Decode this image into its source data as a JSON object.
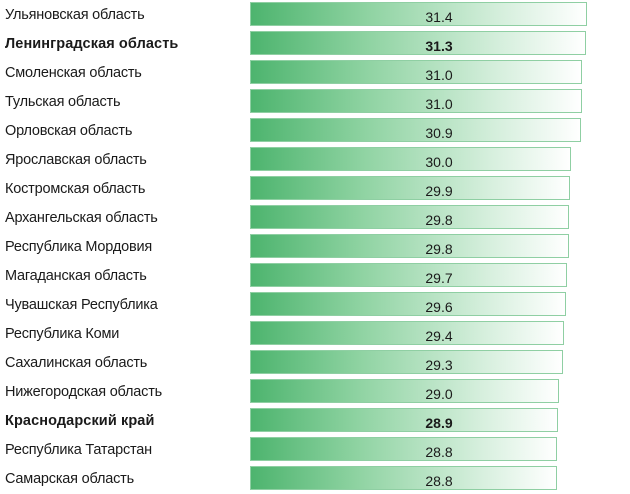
{
  "chart_data": {
    "type": "bar",
    "orientation": "horizontal",
    "title": "",
    "xlabel": "",
    "ylabel": "",
    "xlim": [
      0,
      31.4
    ],
    "categories": [
      "Ульяновская область",
      "Ленинградская область",
      "Смоленская область",
      "Тульская область",
      "Орловская область",
      "Ярославская область",
      "Костромская область",
      "Архангельская область",
      "Республика Мордовия",
      "Магаданская область",
      "Чувашская Республика",
      "Республика Коми",
      "Сахалинская область",
      "Нижегородская область",
      "Краснодарский край",
      "Республика Татарстан",
      "Самарская область"
    ],
    "values": [
      31.4,
      31.3,
      31.0,
      31.0,
      30.9,
      30.0,
      29.9,
      29.8,
      29.8,
      29.7,
      29.6,
      29.4,
      29.3,
      29.0,
      28.9,
      28.8,
      28.8
    ],
    "value_labels": [
      "31.4",
      "31.3",
      "31.0",
      "31.0",
      "30.9",
      "30.0",
      "29.9",
      "29.8",
      "29.8",
      "29.7",
      "29.6",
      "29.4",
      "29.3",
      "29.0",
      "28.9",
      "28.8",
      "28.8"
    ],
    "highlighted": [
      "Ленинградская область",
      "Краснодарский край"
    ],
    "grid": false,
    "legend": "none",
    "bar_gradient_colors": [
      "#4db46e",
      "#ffffff"
    ]
  }
}
